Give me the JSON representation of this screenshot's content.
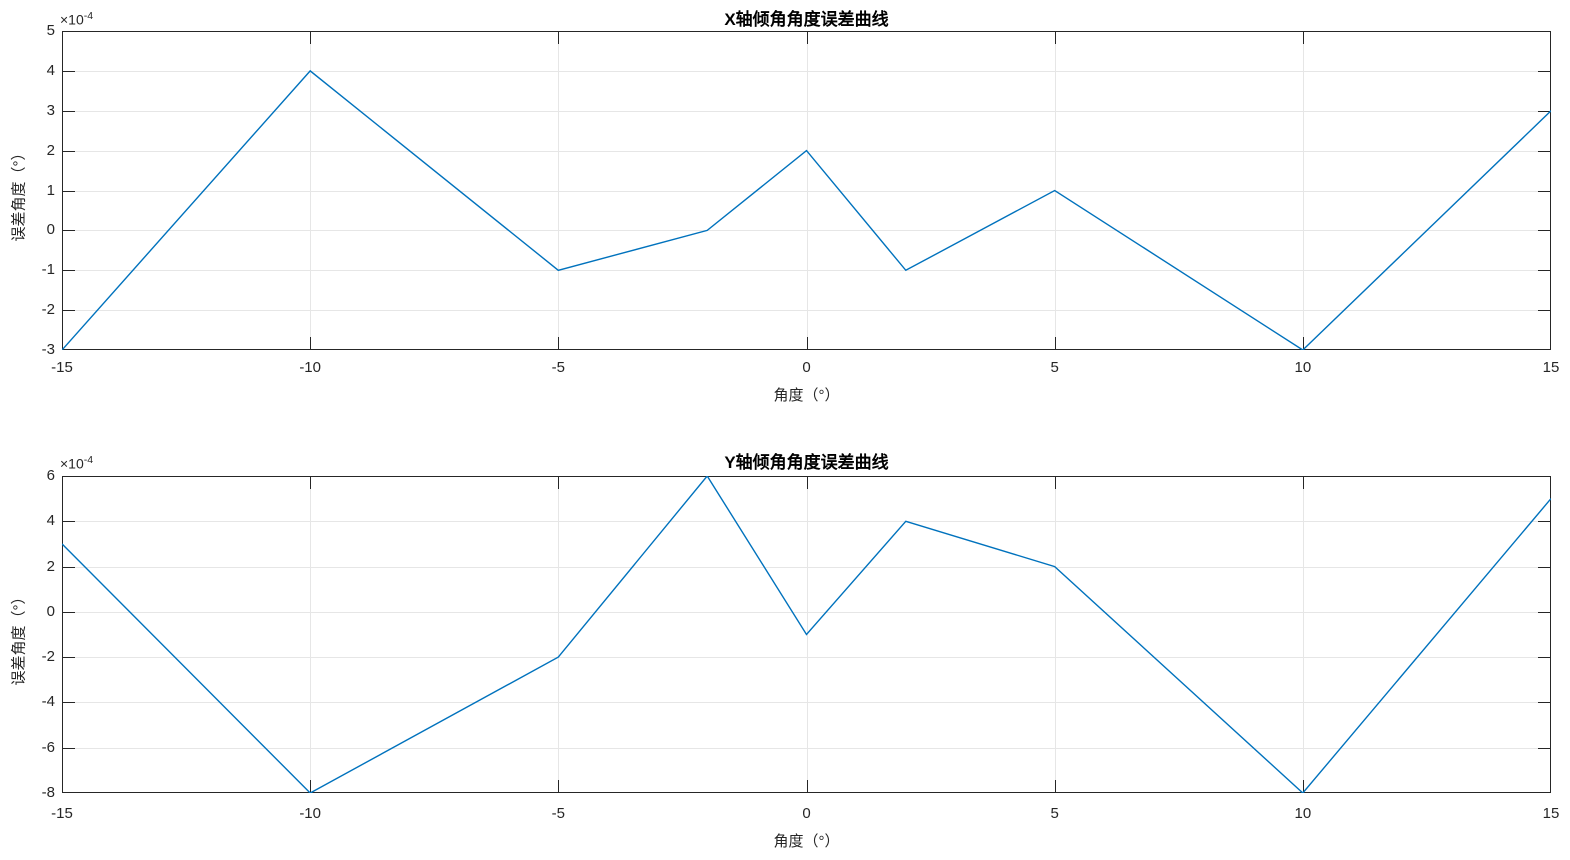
{
  "figure": {
    "background": "#ffffff"
  },
  "colors": {
    "line": "#0072BD",
    "grid": "#e6e6e6",
    "axis": "#262626",
    "tick_label": "#262626",
    "title": "#000000"
  },
  "chart_data": [
    {
      "type": "line",
      "title": "X轴倾角角度误差曲线",
      "xlabel": "角度（°）",
      "ylabel": "误差角度（°）",
      "y_multiplier": {
        "base": "×10",
        "exp": "-4"
      },
      "y_scale_factor": "1e-4",
      "x": [
        -15,
        -10,
        -5,
        -2,
        0,
        2,
        5,
        10,
        15
      ],
      "y": [
        -3,
        4,
        -1,
        0,
        2,
        -1,
        1,
        -3,
        3
      ],
      "xlim": [
        -15,
        15
      ],
      "ylim": [
        -3,
        5
      ],
      "xticks": [
        -15,
        -10,
        -5,
        0,
        5,
        10,
        15
      ],
      "yticks": [
        -3,
        -2,
        -1,
        0,
        1,
        2,
        3,
        4,
        5
      ],
      "grid": true,
      "legend_position": "none",
      "line_color": "#0072BD"
    },
    {
      "type": "line",
      "title": "Y轴倾角角度误差曲线",
      "xlabel": "角度（°）",
      "ylabel": "误差角度（°）",
      "y_multiplier": {
        "base": "×10",
        "exp": "-4"
      },
      "y_scale_factor": "1e-4",
      "x": [
        -15,
        -10,
        -5,
        -2,
        0,
        2,
        5,
        10,
        15
      ],
      "y": [
        3,
        -8,
        -2,
        6,
        -1,
        4,
        2,
        -8,
        5
      ],
      "xlim": [
        -15,
        15
      ],
      "ylim": [
        -8,
        6
      ],
      "xticks": [
        -15,
        -10,
        -5,
        0,
        5,
        10,
        15
      ],
      "yticks": [
        -8,
        -6,
        -4,
        -2,
        0,
        2,
        4,
        6
      ],
      "grid": true,
      "legend_position": "none",
      "line_color": "#0072BD"
    }
  ]
}
